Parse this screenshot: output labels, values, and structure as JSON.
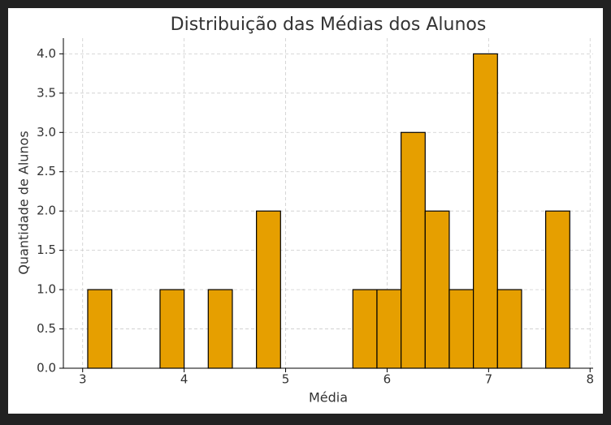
{
  "chart_data": {
    "type": "histogram",
    "title": "Distribuição das Médias dos Alunos",
    "x_label": "Média",
    "y_label": "Quantidade de Alunos",
    "bins": [
      3.05,
      3.2875,
      3.525,
      3.7625,
      4.0,
      4.2375,
      4.475,
      4.7125,
      4.95,
      5.1875,
      5.425,
      5.6625,
      5.9,
      6.1375,
      6.375,
      6.6125,
      6.85,
      7.0875,
      7.325,
      7.5625,
      7.8
    ],
    "counts": [
      1,
      0,
      0,
      1,
      0,
      1,
      0,
      2,
      0,
      0,
      0,
      1,
      1,
      3,
      2,
      1,
      4,
      1,
      0,
      2
    ],
    "color": "#e69f00",
    "edge_color": "#000000",
    "xlim": [
      2.81,
      8.03
    ],
    "ylim": [
      0,
      4.2
    ],
    "xticks": [
      3,
      4,
      5,
      6,
      7,
      8
    ],
    "yticks": [
      {
        "value": 0,
        "label": "0.0"
      },
      {
        "value": 0.5,
        "label": "0.5"
      },
      {
        "value": 1,
        "label": "1.0"
      },
      {
        "value": 1.5,
        "label": "1.5"
      },
      {
        "value": 2,
        "label": "2.0"
      },
      {
        "value": 2.5,
        "label": "2.5"
      },
      {
        "value": 3,
        "label": "3.0"
      },
      {
        "value": 3.5,
        "label": "3.5"
      },
      {
        "value": 4,
        "label": "4.0"
      }
    ],
    "grid": true
  }
}
